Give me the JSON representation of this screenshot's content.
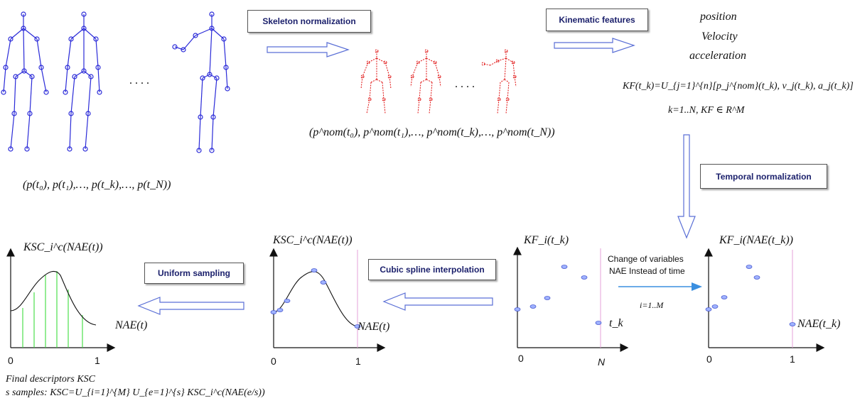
{
  "steps": {
    "skeleton_normalization": "Skeleton normalization",
    "kinematic_features": "Kinematic features",
    "temporal_normalization": "Temporal normalization",
    "cubic_spline": "Cubic spline interpolation",
    "uniform_sampling": "Uniform sampling"
  },
  "features_list": [
    "position",
    "Velocity",
    "acceleration"
  ],
  "equations": {
    "raw_sequence": "(p(t₀), p(t₁),…, p(t_k),…, p(t_N))",
    "norm_sequence": "(p^nom(t₀), p^nom(t₁),…, p^nom(t_k),…, p^nom(t_N))",
    "kf_def": "KF(t_k)=U_{j=1}^{n}[p_j^{nom}(t_k), v_j(t_k), a_j(t_k)]",
    "kf_range": "k=1..N, KF ∈ R^M"
  },
  "ellipsis": ". . . .",
  "change_of_variables": {
    "line1": "Change of variables",
    "line2": "NAE Instead of time",
    "index": "i=1..M"
  },
  "plots": {
    "kf_tk": {
      "ylabel": "KF_i(t_k)",
      "xlabel": "t_k",
      "ticks": [
        "0",
        "N"
      ]
    },
    "kf_nae": {
      "ylabel": "KF_i(NAE(t_k))",
      "xlabel": "NAE(t_k)",
      "ticks": [
        "0",
        "1"
      ]
    },
    "spline": {
      "ylabel": "KSC_i^c(NAE(t))",
      "xlabel": "NAE(t)",
      "ticks": [
        "0",
        "1"
      ]
    },
    "sampled": {
      "ylabel": "KSC_i^c(NAE(t))",
      "xlabel": "NAE(t)",
      "ticks": [
        "0",
        "1"
      ]
    }
  },
  "final": {
    "line1": "Final descriptors KSC",
    "line2": "s samples: KSC=U_{i=1}^{M} U_{e=1}^{s} KSC_i^c(NAE(e/s))"
  },
  "colors": {
    "skeleton_raw": "#2a2ad8",
    "skeleton_norm": "#e01010",
    "arrow": "#5a6fd6",
    "spline_marker": "#d670c8",
    "sample_line": "#3ddc3d",
    "point": "#8fa6ff"
  }
}
